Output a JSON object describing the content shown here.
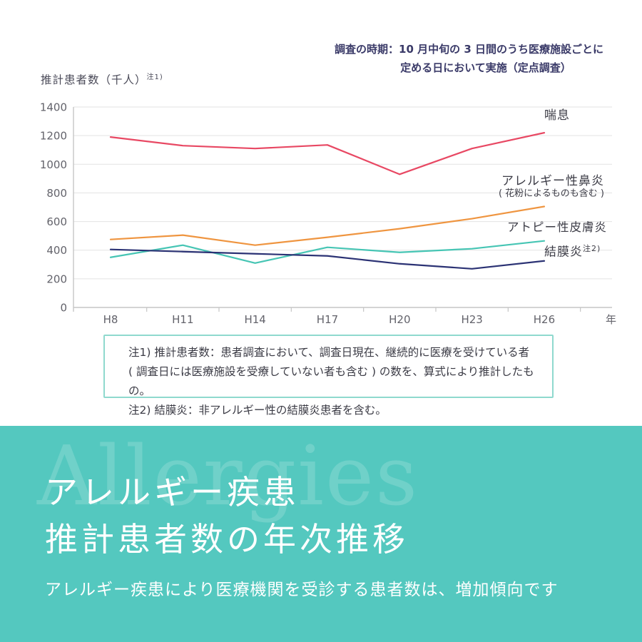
{
  "annotation": {
    "line1": "調査の時期：10 月中旬の 3 日間のうち医療施設ごとに",
    "line2": "定める日において実施（定点調査）",
    "color": "#3a3a68"
  },
  "chart_data": {
    "type": "line",
    "ylabel_main": "推計患者数（千人）",
    "ylabel_sup": "注1)",
    "xlabel": "年",
    "categories": [
      "H8",
      "H11",
      "H14",
      "H17",
      "H20",
      "H23",
      "H26"
    ],
    "ylim": [
      0,
      1400
    ],
    "yticks": [
      0,
      200,
      400,
      600,
      800,
      1000,
      1200,
      1400
    ],
    "grid": true,
    "legend_position": "right-of-line-ends",
    "series": [
      {
        "name": "喘息",
        "color": "#e84863",
        "values": [
          1190,
          1130,
          1110,
          1135,
          930,
          1110,
          1220
        ]
      },
      {
        "name": "アレルギー性鼻炎",
        "subname": "( 花粉によるものも含む )",
        "color": "#ef9540",
        "values": [
          475,
          505,
          435,
          490,
          550,
          620,
          705
        ]
      },
      {
        "name": "アトピー性皮膚炎",
        "color": "#46c5b4",
        "values": [
          350,
          435,
          310,
          420,
          385,
          410,
          465
        ]
      },
      {
        "name": "結膜炎",
        "sup": "注2)",
        "color": "#2b3274",
        "values": [
          405,
          390,
          375,
          360,
          305,
          270,
          325
        ]
      }
    ]
  },
  "notes": {
    "line1": "注1) 推計患者数：患者調査において、調査日現在、継続的に医療を受けている者",
    "line2": "( 調査日には医療施設を受療していない者も含む ) の数を、算式により推計したもの。",
    "line3": "注2) 結膜炎：非アレルギー性の結膜炎患者を含む。",
    "border_color": "#8fd9ce"
  },
  "footer": {
    "watermark": "Allergies",
    "title_line1": "アレルギー疾患",
    "title_line2": "推計患者数の年次推移",
    "subtitle": "アレルギー疾患により医療機関を受診する患者数は、増加傾向です",
    "bg_color": "#54c8bf"
  },
  "colors": {
    "grid": "#e3e3e3",
    "axis": "#c6c6c6",
    "tick_label": "#63636b"
  }
}
